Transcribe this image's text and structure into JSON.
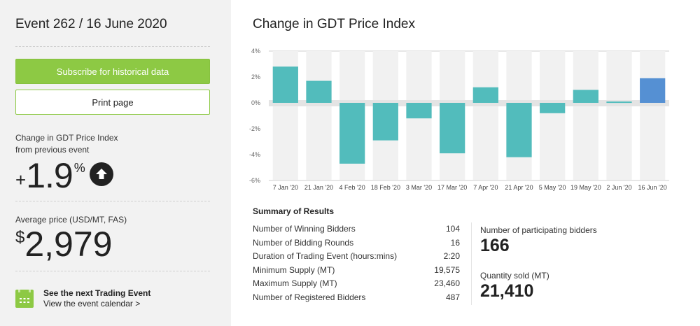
{
  "sidebar": {
    "event_title": "Event 262 / 16 June 2020",
    "subscribe_label": "Subscribe for historical data",
    "print_label": "Print page",
    "change_label_1": "Change in GDT Price Index",
    "change_label_2": "from previous event",
    "change_sign": "+",
    "change_value": "1.9",
    "change_unit": "%",
    "change_direction_icon": "arrow-up-circle-icon",
    "avg_price_label": "Average price (USD/MT, FAS)",
    "avg_price_currency": "$",
    "avg_price_value": "2,979",
    "next_event_title": "See the next Trading Event",
    "next_event_link": "View the event calendar >",
    "calendar_icon": "calendar-icon"
  },
  "colors": {
    "accent_green": "#8dc944",
    "bar_teal": "#52bcbc",
    "bar_current": "#5590d3",
    "text_dark": "#222222",
    "sidebar_bg": "#f2f2f2"
  },
  "main": {
    "chart_title": "Change in GDT Price Index"
  },
  "chart_data": {
    "type": "bar",
    "title": "Change in GDT Price Index",
    "xlabel": "",
    "ylabel": "",
    "categories": [
      "7 Jan '20",
      "21 Jan '20",
      "4 Feb '20",
      "18 Feb '20",
      "3 Mar '20",
      "17 Mar '20",
      "7 Apr '20",
      "21 Apr '20",
      "5 May '20",
      "19 May '20",
      "2 Jun '20",
      "16 Jun '20"
    ],
    "values": [
      2.8,
      1.7,
      -4.7,
      -2.9,
      -1.2,
      -3.9,
      1.2,
      -4.2,
      -0.8,
      1.0,
      0.1,
      1.9
    ],
    "highlight_index": 11,
    "ylim": [
      -6,
      4
    ],
    "yticks": [
      4,
      2,
      0,
      -2,
      -4,
      -6
    ],
    "ytick_labels": [
      "4%",
      "2%",
      "0%",
      "-2%",
      "-4%",
      "-6%"
    ],
    "grid": "alternating column bands",
    "legend": "none"
  },
  "summary": {
    "title": "Summary of Results",
    "rows": [
      {
        "label": "Number of Winning Bidders",
        "value": "104"
      },
      {
        "label": "Number of Bidding Rounds",
        "value": "16"
      },
      {
        "label": "Duration of Trading Event (hours:mins)",
        "value": "2:20"
      },
      {
        "label": "Minimum Supply (MT)",
        "value": "19,575"
      },
      {
        "label": "Maximum Supply (MT)",
        "value": "23,460"
      },
      {
        "label": "Number of Registered Bidders",
        "value": "487"
      }
    ],
    "participating_label": "Number of participating bidders",
    "participating_value": "166",
    "quantity_label": "Quantity sold (MT)",
    "quantity_value": "21,410"
  }
}
